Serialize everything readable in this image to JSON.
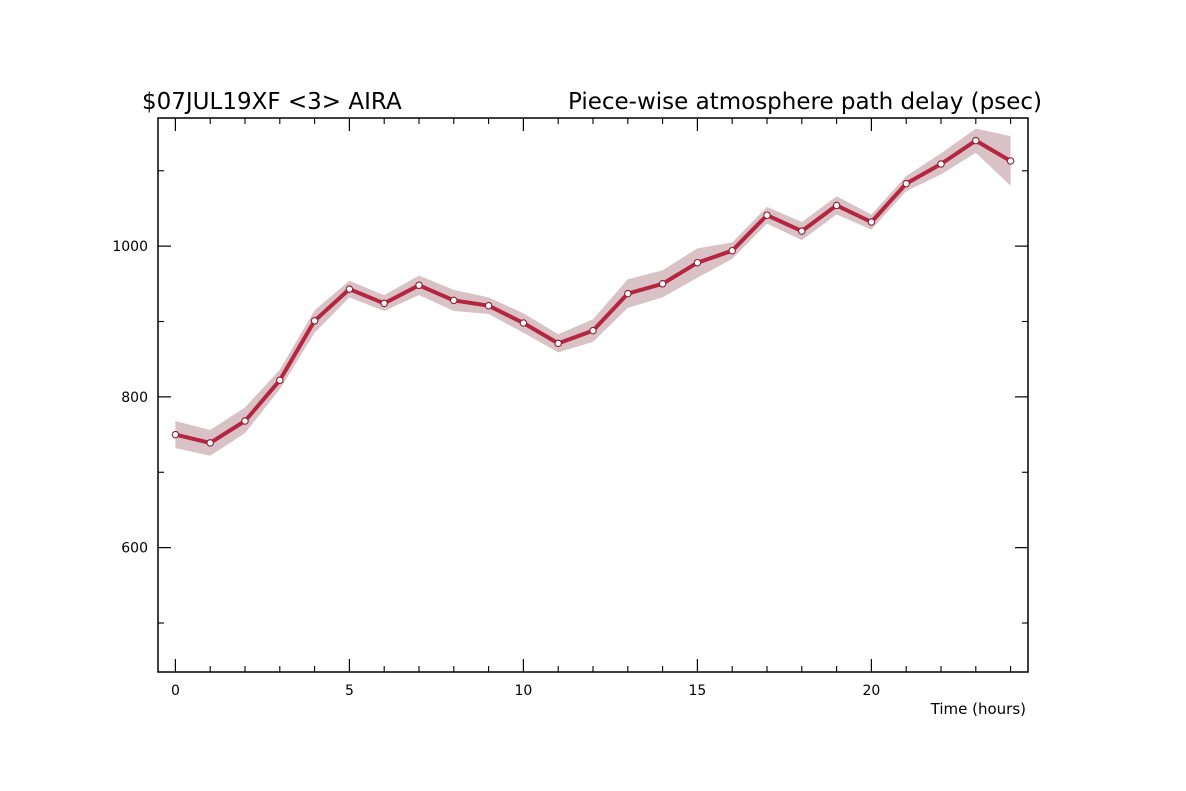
{
  "chart_data": {
    "type": "line",
    "title_left": "$07JUL19XF <3>  AIRA",
    "title_right": "Piece-wise atmosphere path delay (psec)",
    "xlabel": "Time (hours)",
    "ylabel": "",
    "xlim": [
      -0.5,
      24.5
    ],
    "ylim": [
      435,
      1170
    ],
    "x_ticks_major": [
      0,
      5,
      10,
      15,
      20
    ],
    "x_ticks_minor": [
      1,
      2,
      3,
      4,
      6,
      7,
      8,
      9,
      11,
      12,
      13,
      14,
      16,
      17,
      18,
      19,
      21,
      22,
      23,
      24
    ],
    "y_ticks_major": [
      600,
      800,
      1000
    ],
    "y_ticks_minor": [
      500,
      700,
      900,
      1100
    ],
    "grid": false,
    "colors": {
      "line": "#b5253f",
      "band": "#d9c2c6",
      "marker_fill": "#ffffff",
      "marker_stroke": "#8c1e33",
      "axis": "#000000"
    },
    "series": [
      {
        "x": [
          0,
          1,
          2,
          3,
          4,
          5,
          6,
          7,
          8,
          9,
          10,
          11,
          12,
          13,
          14,
          15,
          16,
          17,
          18,
          19,
          20,
          21,
          22,
          23,
          24
        ],
        "y": [
          750,
          739,
          768,
          822,
          901,
          943,
          924,
          948,
          928,
          921,
          898,
          871,
          888,
          937,
          950,
          978,
          994,
          1041,
          1020,
          1054,
          1032,
          1083,
          1109,
          1140,
          1113
        ],
        "lower": [
          732,
          722,
          752,
          810,
          885,
          932,
          914,
          935,
          914,
          910,
          885,
          859,
          873,
          918,
          932,
          958,
          983,
          1030,
          1008,
          1042,
          1022,
          1073,
          1095,
          1124,
          1080
        ],
        "upper": [
          768,
          756,
          786,
          836,
          915,
          954,
          935,
          961,
          942,
          932,
          911,
          883,
          903,
          956,
          968,
          997,
          1005,
          1052,
          1032,
          1066,
          1042,
          1093,
          1123,
          1156,
          1146
        ]
      }
    ]
  }
}
